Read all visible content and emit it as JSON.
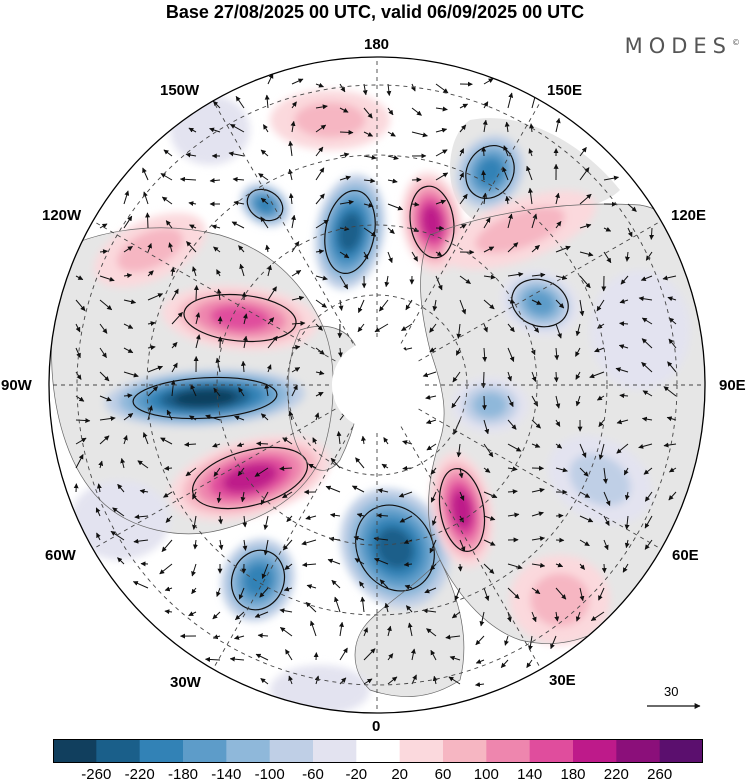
{
  "header": {
    "title": "Base 27/08/2025 00 UTC, valid 06/09/2025 00 UTC",
    "brand": "MODES"
  },
  "map": {
    "projection": "north-polar-stereographic",
    "longitude_labels": [
      "180",
      "150E",
      "120E",
      "90E",
      "60E",
      "30E",
      "0",
      "30W",
      "60W",
      "90W",
      "120W",
      "150W"
    ],
    "colors": {
      "land": "#e6e6e6",
      "coast": "#666666",
      "graticule": "#444444",
      "contour": "#111111",
      "arrow": "#111111"
    }
  },
  "reference_vector": {
    "label": "30"
  },
  "colorbar": {
    "labels": [
      "-260",
      "-220",
      "-180",
      "-140",
      "-100",
      "-60",
      "-20",
      "20",
      "60",
      "100",
      "140",
      "180",
      "220",
      "260"
    ],
    "colors": [
      "#113f5e",
      "#1a5f8a",
      "#3282b6",
      "#5d9cc9",
      "#8fb8da",
      "#bfcfe6",
      "#e3e3f0",
      "#ffffff",
      "#fbd9dd",
      "#f6b6c2",
      "#ee86ae",
      "#e04d9d",
      "#be1a8a",
      "#8b0f7a",
      "#5b0f6e"
    ]
  }
}
